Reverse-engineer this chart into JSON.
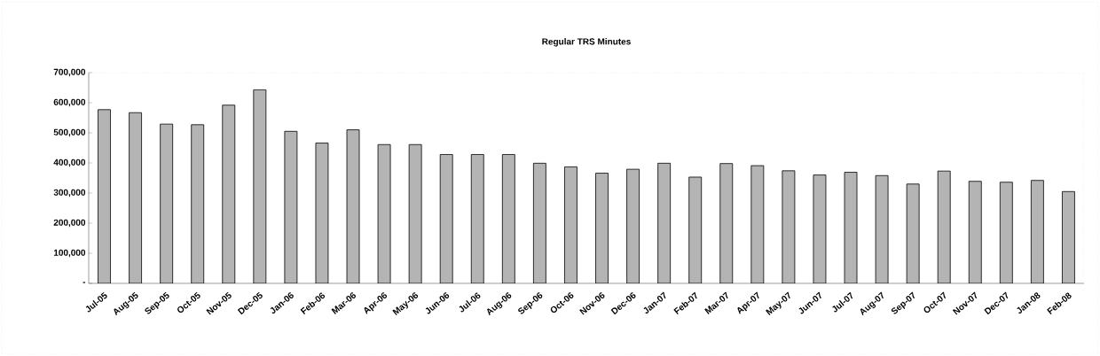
{
  "chart_data": {
    "type": "bar",
    "title": "Regular TRS Minutes",
    "categories": [
      "Jul-05",
      "Aug-05",
      "Sep-05",
      "Oct-05",
      "Nov-05",
      "Dec-05",
      "Jan-06",
      "Feb-06",
      "Mar-06",
      "Apr-06",
      "May-06",
      "Jun-06",
      "Jul-06",
      "Aug-06",
      "Sep-06",
      "Oct-06",
      "Nov-06",
      "Dec-06",
      "Jan-07",
      "Feb-07",
      "Mar-07",
      "Apr-07",
      "May-07",
      "Jun-07",
      "Jul-07",
      "Aug-07",
      "Sep-07",
      "Oct-07",
      "Nov-07",
      "Dec-07",
      "Jan-08",
      "Feb-08"
    ],
    "values": [
      577000,
      567000,
      529000,
      527000,
      592000,
      643000,
      505000,
      466000,
      510000,
      461000,
      461000,
      428000,
      428000,
      428000,
      399000,
      387000,
      366000,
      379000,
      399000,
      353000,
      398000,
      391000,
      374000,
      360000,
      369000,
      358000,
      330000,
      373000,
      339000,
      336000,
      342000,
      305000
    ],
    "color": "#b4b4b4",
    "ylim": [
      0,
      700000
    ],
    "yticks": [
      {
        "value": 0,
        "label": "-"
      },
      {
        "value": 100000,
        "label": "100,000"
      },
      {
        "value": 200000,
        "label": "200,000"
      },
      {
        "value": 300000,
        "label": "300,000"
      },
      {
        "value": 400000,
        "label": "400,000"
      },
      {
        "value": 500000,
        "label": "500,000"
      },
      {
        "value": 600000,
        "label": "600,000"
      },
      {
        "value": 700000,
        "label": "700,000"
      }
    ]
  }
}
